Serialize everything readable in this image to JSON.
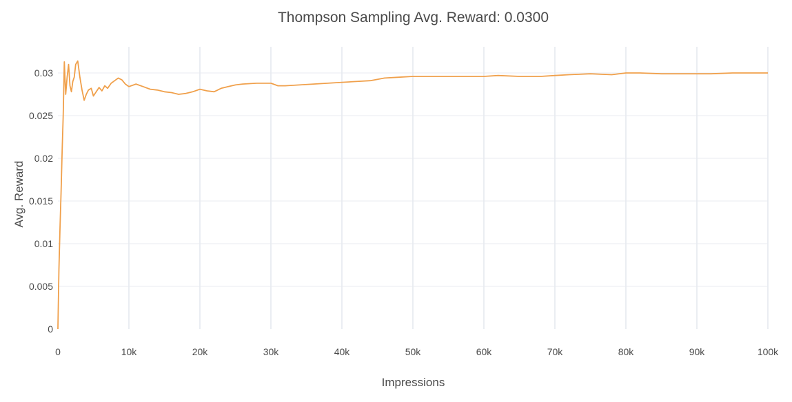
{
  "chart_data": {
    "type": "line",
    "title": "Thompson Sampling Avg. Reward: 0.0300",
    "xlabel": "Impressions",
    "ylabel": "Avg. Reward",
    "xlim": [
      0,
      100000
    ],
    "ylim": [
      0,
      0.032
    ],
    "x_ticks": [
      0,
      10000,
      20000,
      30000,
      40000,
      50000,
      60000,
      70000,
      80000,
      90000,
      100000
    ],
    "x_tick_labels": [
      "0",
      "10k",
      "20k",
      "30k",
      "40k",
      "50k",
      "60k",
      "70k",
      "80k",
      "90k",
      "100k"
    ],
    "y_ticks": [
      0,
      0.005,
      0.01,
      0.015,
      0.02,
      0.025,
      0.03
    ],
    "y_tick_labels": [
      "0",
      "0.005",
      "0.01",
      "0.015",
      "0.02",
      "0.025",
      "0.03"
    ],
    "grid": true,
    "legend": "none",
    "series": [
      {
        "color": "#f0a04b",
        "x": [
          0,
          150,
          300,
          450,
          600,
          750,
          900,
          1100,
          1300,
          1500,
          1700,
          1900,
          2100,
          2300,
          2500,
          2800,
          3100,
          3400,
          3700,
          4000,
          4300,
          4700,
          5000,
          5400,
          5800,
          6200,
          6600,
          7000,
          7500,
          8000,
          8500,
          9000,
          9500,
          10000,
          11000,
          12000,
          13000,
          14000,
          15000,
          16000,
          17000,
          18000,
          19000,
          20000,
          21000,
          22000,
          23000,
          24000,
          25000,
          26000,
          28000,
          30000,
          31000,
          32000,
          34000,
          36000,
          38000,
          40000,
          42000,
          44000,
          46000,
          48000,
          50000,
          52000,
          55000,
          58000,
          60000,
          62000,
          65000,
          68000,
          70000,
          72000,
          75000,
          78000,
          80000,
          82000,
          85000,
          88000,
          90000,
          92000,
          95000,
          98000,
          100000
        ],
        "y": [
          0,
          0.007,
          0.012,
          0.016,
          0.021,
          0.025,
          0.0313,
          0.0275,
          0.0295,
          0.031,
          0.0285,
          0.0278,
          0.029,
          0.0295,
          0.031,
          0.0314,
          0.0295,
          0.028,
          0.0268,
          0.0275,
          0.028,
          0.0282,
          0.0273,
          0.0278,
          0.0283,
          0.0279,
          0.0285,
          0.0282,
          0.0288,
          0.0291,
          0.0294,
          0.0292,
          0.0287,
          0.0284,
          0.0287,
          0.0284,
          0.0281,
          0.028,
          0.0278,
          0.0277,
          0.0275,
          0.0276,
          0.0278,
          0.0281,
          0.0279,
          0.0278,
          0.0282,
          0.0284,
          0.0286,
          0.0287,
          0.0288,
          0.0288,
          0.0285,
          0.0285,
          0.0286,
          0.0287,
          0.0288,
          0.0289,
          0.029,
          0.0291,
          0.0294,
          0.0295,
          0.0296,
          0.0296,
          0.0296,
          0.0296,
          0.0296,
          0.0297,
          0.0296,
          0.0296,
          0.0297,
          0.0298,
          0.0299,
          0.0298,
          0.03,
          0.03,
          0.0299,
          0.0299,
          0.0299,
          0.0299,
          0.03,
          0.03,
          0.03
        ]
      }
    ]
  }
}
